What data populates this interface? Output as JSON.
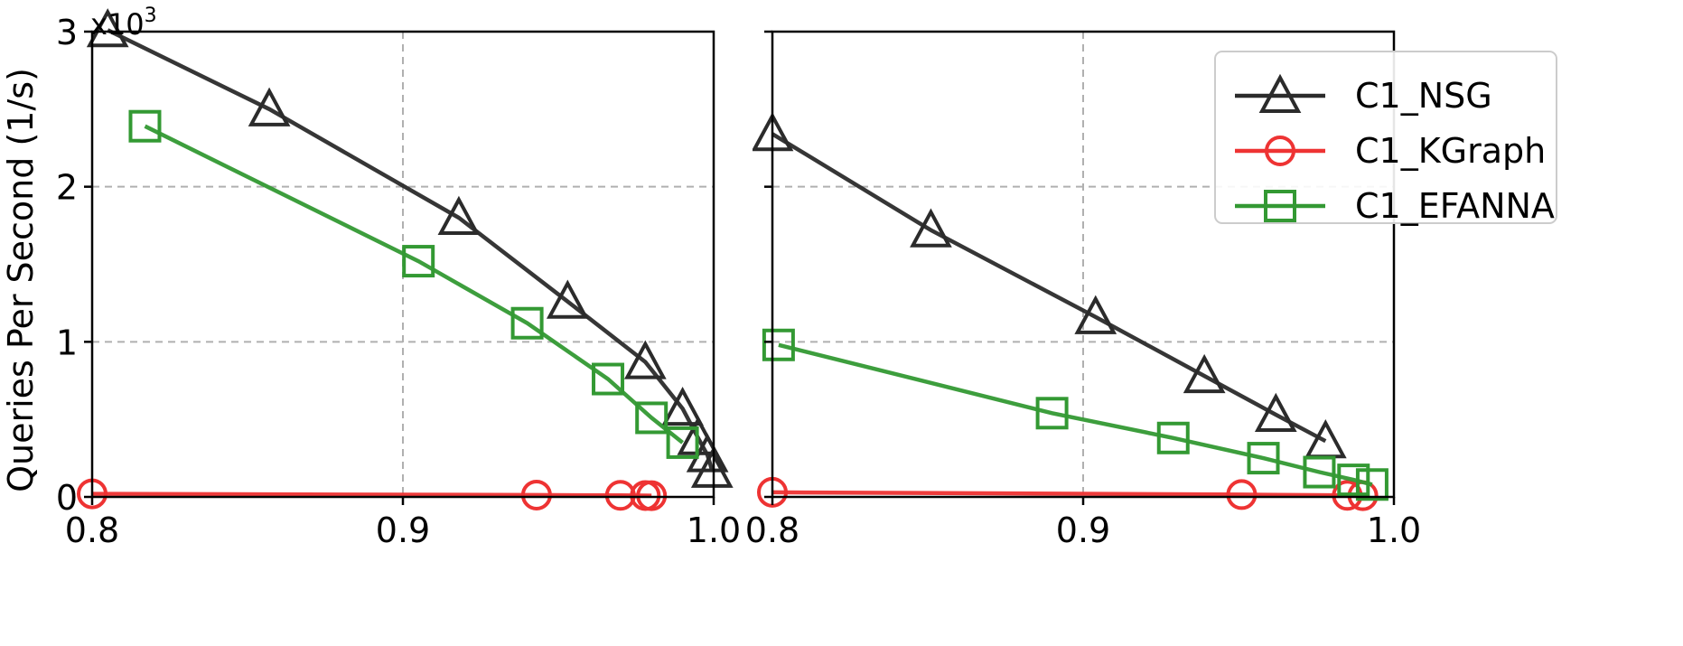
{
  "chart_data": {
    "type": "line",
    "ylabel": "Queries Per Second (1/s)",
    "y_multiplier_label": "x10",
    "y_multiplier_exp": "3",
    "ylim": [
      0,
      3
    ],
    "xlim": [
      0.8,
      1.0
    ],
    "grid": true,
    "legend_placement": "top-right of right panel",
    "yticks": [
      {
        "value": 0,
        "label": "0"
      },
      {
        "value": 1,
        "label": "1"
      },
      {
        "value": 2,
        "label": "2"
      },
      {
        "value": 3,
        "label": "3"
      }
    ],
    "xticks": [
      {
        "value": 0.8,
        "label": "0.8"
      },
      {
        "value": 0.9,
        "label": "0.9"
      },
      {
        "value": 1.0,
        "label": "1.0"
      }
    ],
    "legend": [
      {
        "name": "C1_NSG",
        "color": "#2b2b2b",
        "marker": "triangle"
      },
      {
        "name": "C1_KGraph",
        "color": "#ee3333",
        "marker": "circle"
      },
      {
        "name": "C1_EFANNA",
        "color": "#339933",
        "marker": "square"
      }
    ],
    "panels": [
      {
        "series": [
          {
            "name": "C1_NSG",
            "x": [
              0.805,
              0.857,
              0.918,
              0.953,
              0.978,
              0.99,
              0.995,
              0.998,
              0.9995
            ],
            "y": [
              3.01,
              2.5,
              1.8,
              1.26,
              0.87,
              0.57,
              0.38,
              0.27,
              0.17
            ]
          },
          {
            "name": "C1_KGraph",
            "x": [
              0.8,
              0.943,
              0.97,
              0.978,
              0.98
            ],
            "y": [
              0.02,
              0.012,
              0.01,
              0.009,
              0.008
            ]
          },
          {
            "name": "C1_EFANNA",
            "x": [
              0.817,
              0.905,
              0.94,
              0.966,
              0.98,
              0.99
            ],
            "y": [
              2.39,
              1.52,
              1.12,
              0.76,
              0.51,
              0.35
            ]
          }
        ]
      },
      {
        "series": [
          {
            "name": "C1_NSG",
            "x": [
              0.8,
              0.851,
              0.904,
              0.939,
              0.962,
              0.978
            ],
            "y": [
              2.34,
              1.72,
              1.16,
              0.78,
              0.53,
              0.36
            ]
          },
          {
            "name": "C1_KGraph",
            "x": [
              0.8,
              0.951,
              0.985,
              0.99
            ],
            "y": [
              0.03,
              0.015,
              0.01,
              0.008
            ]
          },
          {
            "name": "C1_EFANNA",
            "x": [
              0.802,
              0.89,
              0.929,
              0.958,
              0.976,
              0.987,
              0.993
            ],
            "y": [
              0.98,
              0.54,
              0.38,
              0.25,
              0.16,
              0.11,
              0.08
            ]
          }
        ]
      }
    ]
  }
}
